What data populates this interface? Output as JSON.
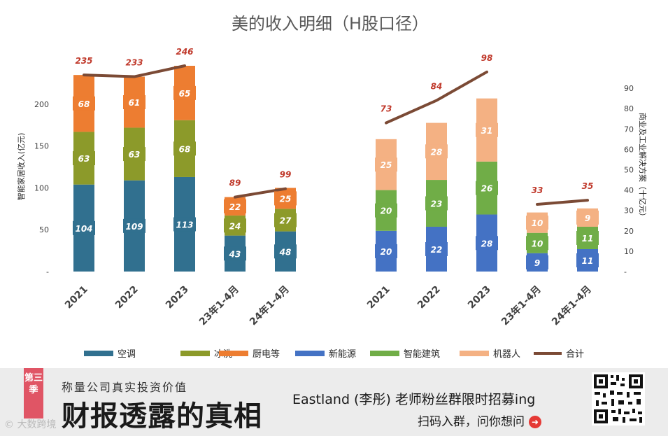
{
  "chart_data": [
    {
      "type": "bar",
      "stacked": true,
      "title": "美的收入明细（H股口径）",
      "ylabel": "智能家居收入(亿元)",
      "ylim": [
        0,
        250
      ],
      "yticks": [
        {
          "v": 0,
          "label": "-"
        },
        {
          "v": 50,
          "label": "50"
        },
        {
          "v": 100,
          "label": "100"
        },
        {
          "v": 150,
          "label": "150"
        },
        {
          "v": 200,
          "label": "200"
        }
      ],
      "categories": [
        "2021",
        "2022",
        "2023",
        "23年1-4月",
        "24年1-4月"
      ],
      "series": [
        {
          "name": "空调",
          "color": "#31708f",
          "values": [
            104,
            109,
            113,
            43,
            48
          ]
        },
        {
          "name": "冰洗",
          "color": "#8c9a2a",
          "values": [
            63,
            63,
            68,
            24,
            27
          ]
        },
        {
          "name": "厨电等",
          "color": "#ed7d31",
          "values": [
            68,
            61,
            65,
            22,
            25
          ]
        }
      ],
      "totals": {
        "name": "合计",
        "values": [
          235,
          233,
          246,
          89,
          99
        ]
      }
    },
    {
      "type": "bar",
      "stacked": true,
      "ylabel": "商业及工业解决方案（十亿元）",
      "ylabel_position": "right",
      "ylim": [
        0,
        100
      ],
      "yticks": [
        {
          "v": 0,
          "label": "-"
        },
        {
          "v": 10,
          "label": "10"
        },
        {
          "v": 20,
          "label": "20"
        },
        {
          "v": 30,
          "label": "30"
        },
        {
          "v": 40,
          "label": "40"
        },
        {
          "v": 50,
          "label": "50"
        },
        {
          "v": 60,
          "label": "60"
        },
        {
          "v": 70,
          "label": "70"
        },
        {
          "v": 80,
          "label": "80"
        },
        {
          "v": 90,
          "label": "90"
        }
      ],
      "categories": [
        "2021",
        "2022",
        "2023",
        "23年1-4月",
        "24年1-4月"
      ],
      "series": [
        {
          "name": "新能源",
          "color": "#4472c4",
          "values": [
            20,
            22,
            28,
            9,
            11
          ]
        },
        {
          "name": "智能建筑",
          "color": "#70ad47",
          "values": [
            20,
            23,
            26,
            10,
            11
          ]
        },
        {
          "name": "机器人",
          "color": "#f4b183",
          "values": [
            25,
            28,
            31,
            10,
            9
          ]
        }
      ],
      "totals": {
        "name": "合计",
        "values": [
          73,
          84,
          98,
          33,
          35
        ]
      }
    }
  ],
  "legend": [
    {
      "label": "空调",
      "color": "#31708f",
      "kind": "box"
    },
    {
      "label": "冰洗",
      "color": "#8c9a2a",
      "kind": "box"
    },
    {
      "label": "厨电等",
      "color": "#ed7d31",
      "kind": "box"
    },
    {
      "label": "新能源",
      "color": "#4472c4",
      "kind": "box"
    },
    {
      "label": "智能建筑",
      "color": "#70ad47",
      "kind": "box"
    },
    {
      "label": "机器人",
      "color": "#f4b183",
      "kind": "box"
    },
    {
      "label": "合计",
      "color": "#7b4a35",
      "kind": "line"
    }
  ],
  "colors": {
    "total_line": "#7b4a35",
    "total_label": "#c0392b"
  },
  "banner": {
    "ribbon": "第三季",
    "slogan": "称量公司真实投资价值",
    "headline": "财报透露的真相",
    "recruit": "Eastland (李彤) 老师粉丝群限时招募ing",
    "cta": "扫码入群，问你想问",
    "cta_icon": "arrow-right-icon",
    "watermark": "© 大数跨境"
  }
}
